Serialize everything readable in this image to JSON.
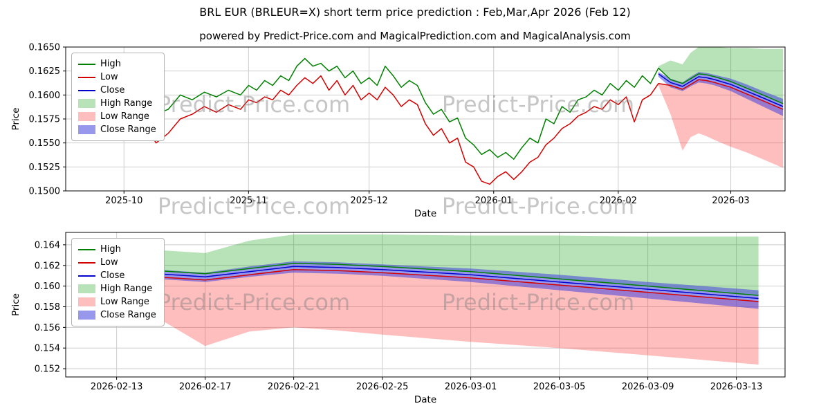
{
  "page": {
    "title": "BRL EUR (BRLEUR=X) short term price prediction : Feb,Mar,Apr 2026 (Feb 12)",
    "subtitle": "powered by Predict-Price.com and MagicalPrediction.com and MagicalAnalysis.com",
    "watermark": "Predict-Price.com"
  },
  "colors": {
    "high": "#008000",
    "low": "#d40000",
    "close": "#0000cd",
    "high_range": "rgba(0,150,0,0.28)",
    "low_range": "rgba(255,40,40,0.30)",
    "close_range": "rgba(65,65,220,0.55)",
    "grid": "#cdcdcd",
    "frame": "#000000",
    "watermark": "rgba(128,128,128,0.45)"
  },
  "legend_items": [
    {
      "label": "High",
      "swatch": "line",
      "color": "#008000"
    },
    {
      "label": "Low",
      "swatch": "line",
      "color": "#d40000"
    },
    {
      "label": "Close",
      "swatch": "line",
      "color": "#0000cd"
    },
    {
      "label": "High Range",
      "swatch": "patch",
      "color": "rgba(0,150,0,0.28)"
    },
    {
      "label": "Low Range",
      "swatch": "patch",
      "color": "rgba(255,40,40,0.30)"
    },
    {
      "label": "Close Range",
      "swatch": "patch",
      "color": "rgba(65,65,220,0.55)"
    }
  ],
  "chart_data": [
    {
      "id": "overview",
      "type": "line",
      "title": "",
      "xlabel": "Date",
      "ylabel": "Price",
      "x_unit": "days since 2025-09-18",
      "xlim": [
        -1.5,
        177.5
      ],
      "ylim": [
        0.15,
        0.165
      ],
      "grid": true,
      "legend_position": "upper left",
      "yticks": [
        {
          "v": 0.15,
          "label": "0.1500"
        },
        {
          "v": 0.1525,
          "label": "0.1525"
        },
        {
          "v": 0.155,
          "label": "0.1550"
        },
        {
          "v": 0.1575,
          "label": "0.1575"
        },
        {
          "v": 0.16,
          "label": "0.1600"
        },
        {
          "v": 0.1625,
          "label": "0.1625"
        },
        {
          "v": 0.165,
          "label": "0.1650"
        }
      ],
      "xticks": [
        {
          "v": 13,
          "label": "2025-10"
        },
        {
          "v": 44,
          "label": "2025-11"
        },
        {
          "v": 74,
          "label": "2025-12"
        },
        {
          "v": 105,
          "label": "2026-01"
        },
        {
          "v": 136,
          "label": "2026-02"
        },
        {
          "v": 164,
          "label": "2026-03"
        }
      ],
      "series": [
        {
          "name": "High",
          "color": "#008000",
          "x": [
            0,
            3,
            6,
            9,
            12,
            15,
            18,
            21,
            24,
            27,
            30,
            33,
            36,
            39,
            42,
            44,
            46,
            48,
            50,
            52,
            54,
            56,
            58,
            60,
            62,
            64,
            66,
            68,
            70,
            72,
            74,
            76,
            78,
            80,
            82,
            84,
            86,
            88,
            90,
            92,
            94,
            96,
            98,
            100,
            102,
            104,
            106,
            108,
            110,
            112,
            114,
            116,
            118,
            120,
            122,
            124,
            126,
            128,
            130,
            132,
            134,
            136,
            138,
            140,
            142,
            144,
            146,
            149,
            152,
            154,
            156,
            158,
            160,
            164,
            168,
            172,
            177
          ],
          "y": [
            0.16,
            0.1608,
            0.1615,
            0.1605,
            0.1613,
            0.1608,
            0.1592,
            0.158,
            0.1585,
            0.16,
            0.1595,
            0.1603,
            0.1598,
            0.1605,
            0.16,
            0.161,
            0.1605,
            0.1615,
            0.161,
            0.162,
            0.1615,
            0.163,
            0.1638,
            0.163,
            0.1633,
            0.1625,
            0.163,
            0.1618,
            0.1625,
            0.1612,
            0.1618,
            0.161,
            0.163,
            0.162,
            0.1608,
            0.1615,
            0.161,
            0.1592,
            0.158,
            0.1585,
            0.1572,
            0.1576,
            0.1555,
            0.1548,
            0.1538,
            0.1543,
            0.1535,
            0.154,
            0.1533,
            0.1545,
            0.1555,
            0.155,
            0.1575,
            0.157,
            0.1588,
            0.1582,
            0.1595,
            0.1598,
            0.1605,
            0.16,
            0.1612,
            0.1605,
            0.1615,
            0.1608,
            0.162,
            0.1612,
            0.1628,
            0.1616,
            0.1612,
            0.1617,
            0.1622,
            0.1621,
            0.1619,
            0.1614,
            0.1607,
            0.16,
            0.1591
          ]
        },
        {
          "name": "Low",
          "color": "#d40000",
          "x": [
            0,
            3,
            6,
            9,
            12,
            15,
            18,
            21,
            24,
            27,
            30,
            33,
            36,
            39,
            42,
            44,
            46,
            48,
            50,
            52,
            54,
            56,
            58,
            60,
            62,
            64,
            66,
            68,
            70,
            72,
            74,
            76,
            78,
            80,
            82,
            84,
            86,
            88,
            90,
            92,
            94,
            96,
            98,
            100,
            102,
            104,
            106,
            108,
            110,
            112,
            114,
            116,
            118,
            120,
            122,
            124,
            126,
            128,
            130,
            132,
            134,
            136,
            138,
            140,
            142,
            144,
            146,
            149,
            152,
            154,
            156,
            158,
            160,
            164,
            168,
            172,
            177
          ],
          "y": [
            0.1585,
            0.1592,
            0.1598,
            0.159,
            0.1597,
            0.158,
            0.157,
            0.155,
            0.156,
            0.1575,
            0.158,
            0.1588,
            0.1582,
            0.159,
            0.1585,
            0.1595,
            0.1592,
            0.1598,
            0.1595,
            0.1605,
            0.16,
            0.161,
            0.1618,
            0.1612,
            0.162,
            0.1605,
            0.1615,
            0.16,
            0.161,
            0.1595,
            0.1602,
            0.1595,
            0.1608,
            0.16,
            0.1588,
            0.1595,
            0.159,
            0.157,
            0.1558,
            0.1565,
            0.155,
            0.1555,
            0.153,
            0.1525,
            0.151,
            0.1507,
            0.1515,
            0.152,
            0.1512,
            0.152,
            0.153,
            0.1535,
            0.1548,
            0.1555,
            0.1565,
            0.157,
            0.1578,
            0.1582,
            0.1588,
            0.1585,
            0.1595,
            0.159,
            0.1598,
            0.1572,
            0.1595,
            0.16,
            0.1612,
            0.161,
            0.1606,
            0.1611,
            0.1616,
            0.1615,
            0.1613,
            0.1608,
            0.1601,
            0.1594,
            0.1585
          ]
        },
        {
          "name": "Close",
          "color": "#0000cd",
          "x": [
            146,
            149,
            152,
            154,
            156,
            158,
            160,
            164,
            168,
            172,
            177
          ],
          "y": [
            0.1622,
            0.1613,
            0.1609,
            0.1614,
            0.1619,
            0.1618,
            0.1616,
            0.1611,
            0.1604,
            0.1597,
            0.1588
          ]
        }
      ],
      "bands": [
        {
          "name": "High Range",
          "color": "rgba(0,150,0,0.28)",
          "x": [
            146,
            149,
            152,
            154,
            156,
            158,
            160,
            164,
            168,
            172,
            177
          ],
          "upper": [
            0.163,
            0.1636,
            0.1632,
            0.1644,
            0.165,
            0.165,
            0.165,
            0.1649,
            0.1649,
            0.1648,
            0.1648
          ],
          "lower": [
            0.1628,
            0.1616,
            0.1612,
            0.1617,
            0.1622,
            0.1621,
            0.1619,
            0.1614,
            0.1607,
            0.16,
            0.1591
          ]
        },
        {
          "name": "Low Range",
          "color": "rgba(255,40,40,0.30)",
          "x": [
            146,
            149,
            152,
            154,
            156,
            158,
            160,
            164,
            168,
            172,
            177
          ],
          "upper": [
            0.1612,
            0.161,
            0.1606,
            0.1611,
            0.1616,
            0.1615,
            0.1613,
            0.1608,
            0.1601,
            0.1594,
            0.1585
          ],
          "lower": [
            0.161,
            0.158,
            0.1542,
            0.1556,
            0.156,
            0.1557,
            0.1553,
            0.1546,
            0.154,
            0.1533,
            0.1524
          ]
        },
        {
          "name": "Close Range",
          "color": "rgba(65,65,220,0.55)",
          "x": [
            146,
            149,
            152,
            154,
            156,
            158,
            160,
            164,
            168,
            172,
            177
          ],
          "upper": [
            0.1624,
            0.1617,
            0.1613,
            0.1619,
            0.1624,
            0.1623,
            0.1621,
            0.1617,
            0.1611,
            0.1604,
            0.1596
          ],
          "lower": [
            0.1619,
            0.1608,
            0.1604,
            0.1609,
            0.1613,
            0.1612,
            0.161,
            0.1604,
            0.1596,
            0.1588,
            0.1578
          ]
        }
      ]
    },
    {
      "id": "forecast",
      "type": "line",
      "title": "",
      "xlabel": "Date",
      "ylabel": "Price",
      "x_unit": "days since 2025-09-18",
      "xlim": [
        145.7,
        178.2
      ],
      "ylim": [
        0.1512,
        0.1652
      ],
      "grid": true,
      "legend_position": "upper left",
      "yticks": [
        {
          "v": 0.152,
          "label": "0.152"
        },
        {
          "v": 0.154,
          "label": "0.154"
        },
        {
          "v": 0.156,
          "label": "0.156"
        },
        {
          "v": 0.158,
          "label": "0.158"
        },
        {
          "v": 0.16,
          "label": "0.160"
        },
        {
          "v": 0.162,
          "label": "0.162"
        },
        {
          "v": 0.164,
          "label": "0.164"
        }
      ],
      "xticks": [
        {
          "v": 148,
          "label": "2026-02-13"
        },
        {
          "v": 152,
          "label": "2026-02-17"
        },
        {
          "v": 156,
          "label": "2026-02-21"
        },
        {
          "v": 160,
          "label": "2026-02-25"
        },
        {
          "v": 164,
          "label": "2026-03-01"
        },
        {
          "v": 168,
          "label": "2026-03-05"
        },
        {
          "v": 172,
          "label": "2026-03-09"
        },
        {
          "v": 176,
          "label": "2026-03-13"
        }
      ],
      "series": [
        {
          "name": "High",
          "color": "#008000",
          "x": [
            146,
            149,
            152,
            154,
            156,
            158,
            160,
            164,
            168,
            172,
            177
          ],
          "y": [
            0.1628,
            0.1616,
            0.1612,
            0.1617,
            0.1622,
            0.1621,
            0.1619,
            0.1614,
            0.1607,
            0.16,
            0.1591
          ]
        },
        {
          "name": "Low",
          "color": "#d40000",
          "x": [
            146,
            149,
            152,
            154,
            156,
            158,
            160,
            164,
            168,
            172,
            177
          ],
          "y": [
            0.1612,
            0.161,
            0.1606,
            0.1611,
            0.1616,
            0.1615,
            0.1613,
            0.1608,
            0.1601,
            0.1594,
            0.1585
          ]
        },
        {
          "name": "Close",
          "color": "#0000cd",
          "x": [
            146,
            149,
            152,
            154,
            156,
            158,
            160,
            164,
            168,
            172,
            177
          ],
          "y": [
            0.1622,
            0.1613,
            0.1609,
            0.1614,
            0.1619,
            0.1618,
            0.1616,
            0.1611,
            0.1604,
            0.1597,
            0.1588
          ]
        }
      ],
      "bands": [
        {
          "name": "High Range",
          "color": "rgba(0,150,0,0.28)",
          "x": [
            146,
            149,
            152,
            154,
            156,
            158,
            160,
            164,
            168,
            172,
            177
          ],
          "upper": [
            0.163,
            0.1636,
            0.1632,
            0.1644,
            0.165,
            0.165,
            0.165,
            0.1649,
            0.1649,
            0.1648,
            0.1648
          ],
          "lower": [
            0.1628,
            0.1616,
            0.1612,
            0.1617,
            0.1622,
            0.1621,
            0.1619,
            0.1614,
            0.1607,
            0.16,
            0.1591
          ]
        },
        {
          "name": "Low Range",
          "color": "rgba(255,40,40,0.30)",
          "x": [
            146,
            149,
            152,
            154,
            156,
            158,
            160,
            164,
            168,
            172,
            177
          ],
          "upper": [
            0.1612,
            0.161,
            0.1606,
            0.1611,
            0.1616,
            0.1615,
            0.1613,
            0.1608,
            0.1601,
            0.1594,
            0.1585
          ],
          "lower": [
            0.161,
            0.158,
            0.1542,
            0.1556,
            0.156,
            0.1557,
            0.1553,
            0.1546,
            0.154,
            0.1533,
            0.1524
          ]
        },
        {
          "name": "Close Range",
          "color": "rgba(65,65,220,0.55)",
          "x": [
            146,
            149,
            152,
            154,
            156,
            158,
            160,
            164,
            168,
            172,
            177
          ],
          "upper": [
            0.1624,
            0.1617,
            0.1613,
            0.1619,
            0.1624,
            0.1623,
            0.1621,
            0.1617,
            0.1611,
            0.1604,
            0.1596
          ],
          "lower": [
            0.1619,
            0.1608,
            0.1604,
            0.1609,
            0.1613,
            0.1612,
            0.161,
            0.1604,
            0.1596,
            0.1588,
            0.1578
          ]
        }
      ]
    }
  ]
}
